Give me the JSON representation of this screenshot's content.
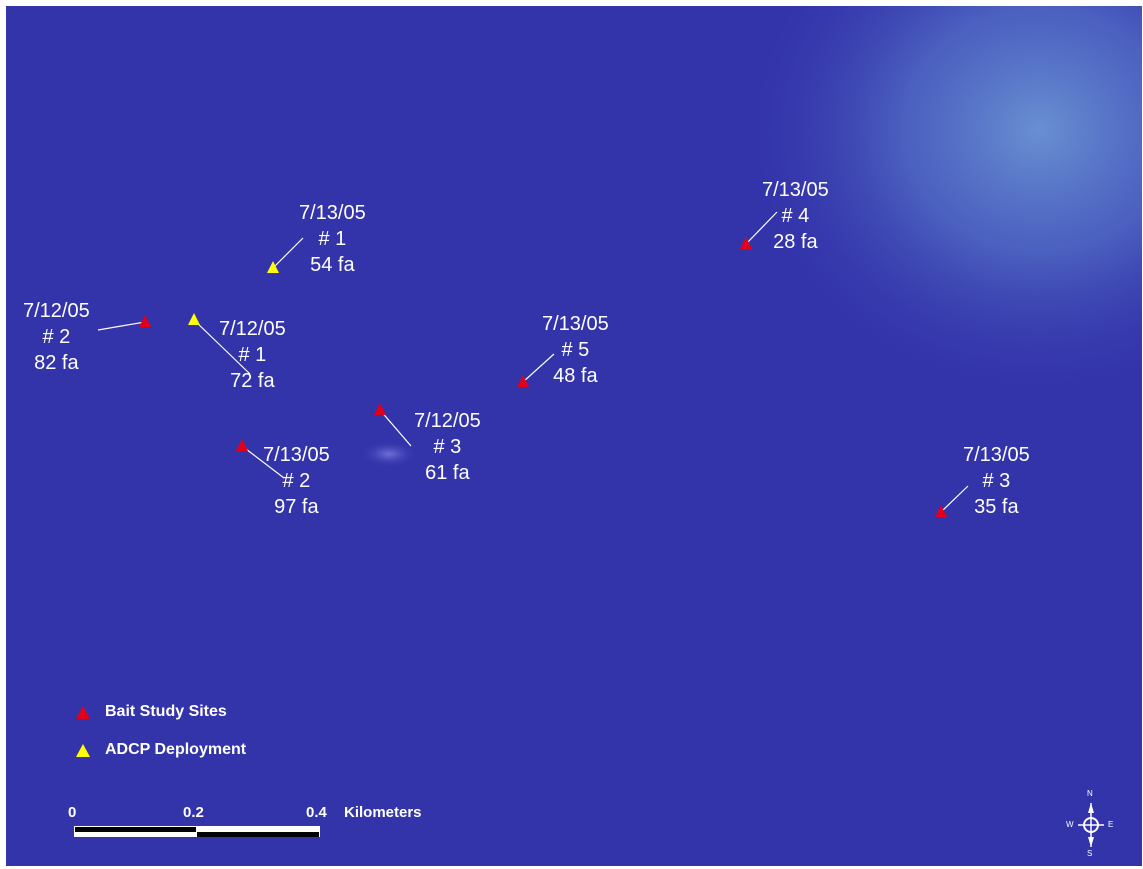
{
  "colors": {
    "water": "#3333aa",
    "bait_marker": "#e0001a",
    "adcp_marker": "#ffff00",
    "label_text": "#ffffff"
  },
  "sites": [
    {
      "kind": "adcp",
      "date": "7/13/05",
      "num": "# 1",
      "depth": "54 fa"
    },
    {
      "kind": "bait",
      "date": "7/12/05",
      "num": "# 2",
      "depth": "82 fa"
    },
    {
      "kind": "adcp",
      "date": "7/12/05",
      "num": "# 1",
      "depth": "72 fa"
    },
    {
      "kind": "bait",
      "date": "7/12/05",
      "num": "# 3",
      "depth": "61 fa"
    },
    {
      "kind": "bait",
      "date": "7/13/05",
      "num": "# 2",
      "depth": "97 fa"
    },
    {
      "kind": "bait",
      "date": "7/13/05",
      "num": "# 5",
      "depth": "48 fa"
    },
    {
      "kind": "bait",
      "date": "7/13/05",
      "num": "# 4",
      "depth": "28 fa"
    },
    {
      "kind": "bait",
      "date": "7/13/05",
      "num": "# 3",
      "depth": "35 fa"
    }
  ],
  "legend": {
    "bait": "Bait Study Sites",
    "adcp": "ADCP Deployment"
  },
  "scalebar": {
    "ticks": [
      "0",
      "0.2",
      "0.4"
    ],
    "unit": "Kilometers"
  },
  "compass": {
    "n": "N",
    "s": "S",
    "e": "E",
    "w": "W"
  }
}
